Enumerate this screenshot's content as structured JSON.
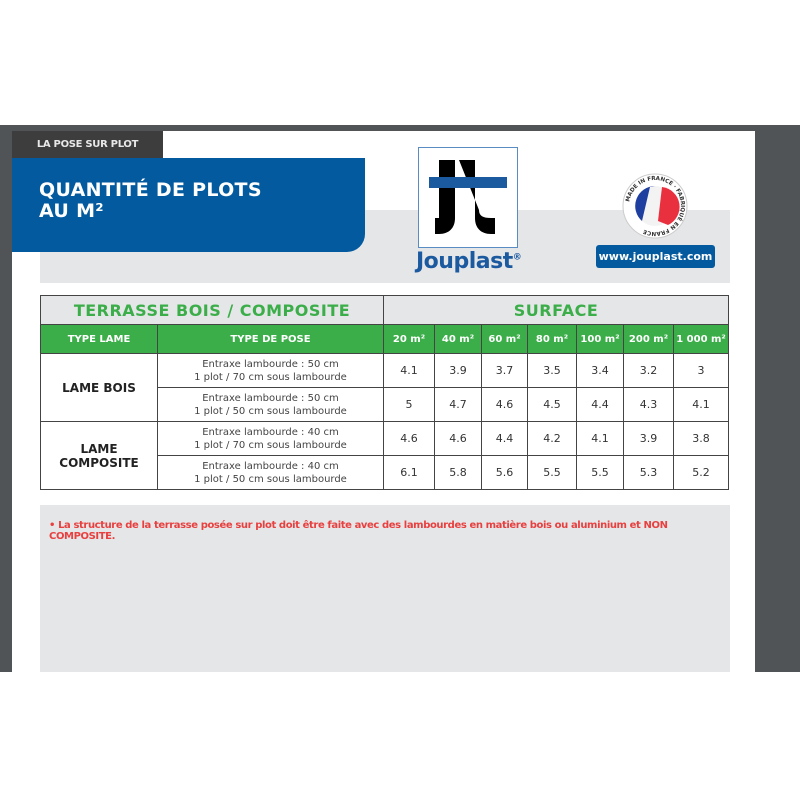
{
  "header": {
    "tab_label": "LA POSE SUR PLOT",
    "title_line1": "QUANTITÉ DE PLOTS",
    "title_line2": "AU M²",
    "brand": "Jouplast",
    "brand_mark": "®",
    "badge_text": "MADE IN FRANCE · FABRIQUÉ EN FRANCE",
    "url": "www.jouplast.com"
  },
  "table": {
    "title_left": "TERRASSE BOIS / COMPOSITE",
    "title_right": "SURFACE",
    "col_type_lame": "TYPE LAME",
    "col_type_pose": "TYPE DE POSE",
    "surfaces": [
      "20 m²",
      "40 m²",
      "60 m²",
      "80 m²",
      "100 m²",
      "200 m²",
      "1 000 m²"
    ],
    "groups": [
      {
        "lame": "LAME BOIS",
        "rows": [
          {
            "pose1": "Entraxe lambourde : 50 cm",
            "pose2": "1 plot / 70 cm sous lambourde",
            "values": [
              "4.1",
              "3.9",
              "3.7",
              "3.5",
              "3.4",
              "3.2",
              "3"
            ]
          },
          {
            "pose1": "Entraxe lambourde : 50 cm",
            "pose2": "1 plot / 50 cm sous lambourde",
            "values": [
              "5",
              "4.7",
              "4.6",
              "4.5",
              "4.4",
              "4.3",
              "4.1"
            ]
          }
        ]
      },
      {
        "lame_line1": "LAME",
        "lame_line2": "COMPOSITE",
        "rows": [
          {
            "pose1": "Entraxe lambourde : 40 cm",
            "pose2": "1 plot / 70 cm sous lambourde",
            "values": [
              "4.6",
              "4.6",
              "4.4",
              "4.2",
              "4.1",
              "3.9",
              "3.8"
            ]
          },
          {
            "pose1": "Entraxe lambourde : 40 cm",
            "pose2": "1 plot / 50 cm sous lambourde",
            "values": [
              "6.1",
              "5.8",
              "5.6",
              "5.5",
              "5.5",
              "5.3",
              "5.2"
            ]
          }
        ]
      }
    ]
  },
  "note": "• La structure de la terrasse posée sur plot doit être faite avec des lambourdes en matière bois ou aluminium et NON COMPOSITE.",
  "colors": {
    "blue": "#035a9e",
    "green": "#3bae49",
    "red": "#e8403f",
    "gray": "#e5e6e8"
  }
}
